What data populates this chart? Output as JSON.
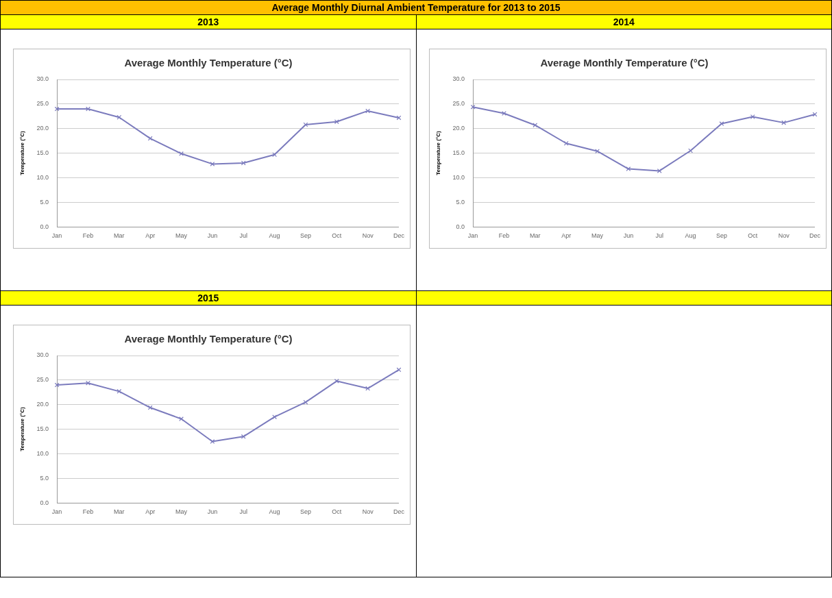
{
  "chart_data": [
    {
      "type": "line",
      "title": "Average Monthly Temperature (°C)",
      "subtitle": "2013",
      "annotations": [
        "Average Monthly Diurnal Ambient Temperature for 2013 to 2015"
      ],
      "ylabel": "Temperature (°C)",
      "categories": [
        "Jan",
        "Feb",
        "Mar",
        "Apr",
        "May",
        "Jun",
        "Jul",
        "Aug",
        "Sep",
        "Oct",
        "Nov",
        "Dec"
      ],
      "series": [
        {
          "color": "#7b7bbd",
          "values": [
            24.0,
            24.0,
            22.3,
            18.0,
            14.9,
            12.8,
            13.0,
            14.7,
            20.8,
            21.4,
            23.6,
            22.2
          ]
        }
      ],
      "ylim": [
        0,
        30
      ],
      "yticks": [
        {
          "value": 0,
          "label": "0.0"
        },
        {
          "value": 5,
          "label": "5.0"
        },
        {
          "value": 10,
          "label": "10.0"
        },
        {
          "value": 15,
          "label": "15.0"
        },
        {
          "value": 20,
          "label": "20.0"
        },
        {
          "value": 25,
          "label": "25.0"
        },
        {
          "value": 30,
          "label": "30.0"
        }
      ],
      "grid": "y",
      "legend": false,
      "marker": "cross"
    },
    {
      "type": "line",
      "title": "Average Monthly Temperature (°C)",
      "subtitle": "2014",
      "ylabel": "Temperature (°C)",
      "categories": [
        "Jan",
        "Feb",
        "Mar",
        "Apr",
        "May",
        "Jun",
        "Jul",
        "Aug",
        "Sep",
        "Oct",
        "Nov",
        "Dec"
      ],
      "series": [
        {
          "color": "#7b7bbd",
          "values": [
            24.4,
            23.1,
            20.7,
            17.0,
            15.4,
            11.8,
            11.4,
            15.5,
            21.0,
            22.4,
            21.2,
            22.9
          ]
        }
      ],
      "ylim": [
        0,
        30
      ],
      "yticks": [
        {
          "value": 0,
          "label": "0.0"
        },
        {
          "value": 5,
          "label": "5.0"
        },
        {
          "value": 10,
          "label": "10.0"
        },
        {
          "value": 15,
          "label": "15.0"
        },
        {
          "value": 20,
          "label": "20.0"
        },
        {
          "value": 25,
          "label": "25.0"
        },
        {
          "value": 30,
          "label": "30.0"
        }
      ],
      "grid": "y",
      "legend": false,
      "marker": "cross"
    },
    {
      "type": "line",
      "title": "Average Monthly Temperature (°C)",
      "subtitle": "2015",
      "ylabel": "Temperature (°C)",
      "categories": [
        "Jan",
        "Feb",
        "Mar",
        "Apr",
        "May",
        "Jun",
        "Jul",
        "Aug",
        "Sep",
        "Oct",
        "Nov",
        "Dec"
      ],
      "series": [
        {
          "color": "#7b7bbd",
          "values": [
            24.0,
            24.4,
            22.7,
            19.4,
            17.1,
            12.5,
            13.5,
            17.5,
            20.5,
            24.8,
            23.3,
            27.1
          ]
        }
      ],
      "ylim": [
        0,
        30
      ],
      "yticks": [
        {
          "value": 0,
          "label": "0.0"
        },
        {
          "value": 5,
          "label": "5.0"
        },
        {
          "value": 10,
          "label": "10.0"
        },
        {
          "value": 15,
          "label": "15.0"
        },
        {
          "value": 20,
          "label": "20.0"
        },
        {
          "value": 25,
          "label": "25.0"
        },
        {
          "value": 30,
          "label": "30.0"
        }
      ],
      "grid": "y",
      "legend": false,
      "marker": "cross"
    }
  ]
}
